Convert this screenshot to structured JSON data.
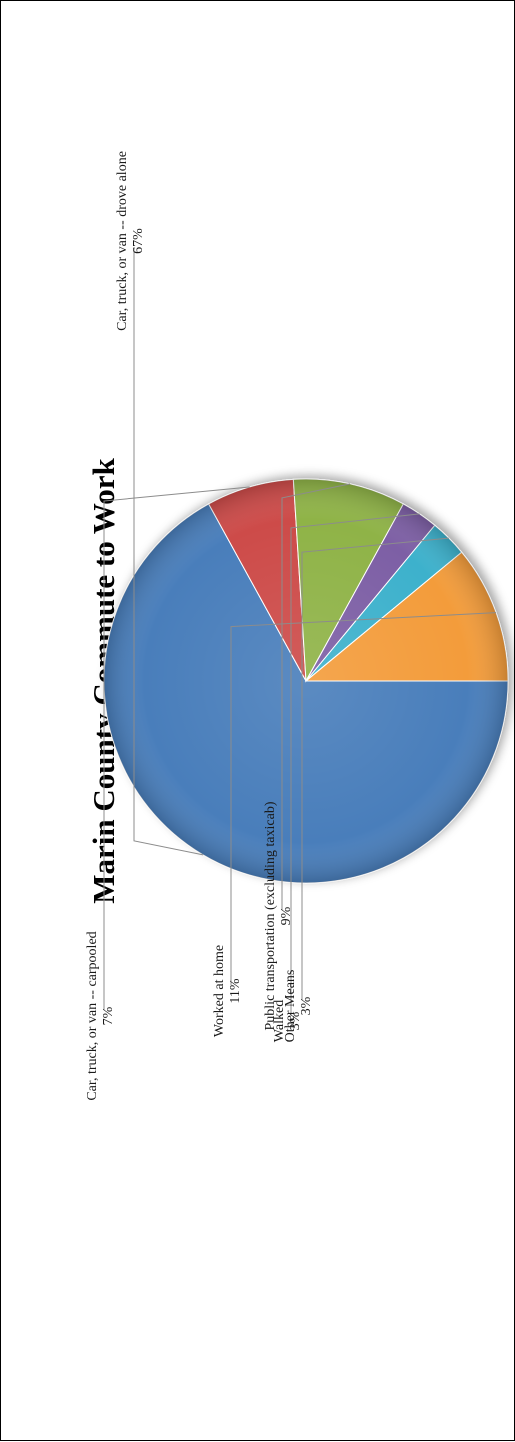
{
  "chart_data": {
    "type": "pie",
    "title": "Marin County Commute to Work",
    "categories": [
      "Car, truck, or van -- drove alone",
      "Car, truck, or van -- carpooled",
      "Public transportation (excluding taxicab)",
      "Walked",
      "Other Means",
      "Worked at home"
    ],
    "values": [
      67,
      7,
      9,
      3,
      3,
      11
    ],
    "value_labels": [
      "67%",
      "7%",
      "9%",
      "3%",
      "3%",
      "11%"
    ],
    "unit": "%",
    "colors": [
      "#4a7ebb",
      "#cd4b48",
      "#8fb347",
      "#7d5fa5",
      "#3cb1cc",
      "#f39c3b"
    ],
    "legend": "none",
    "orientation": "rotated 90 degrees counter-clockwise"
  }
}
